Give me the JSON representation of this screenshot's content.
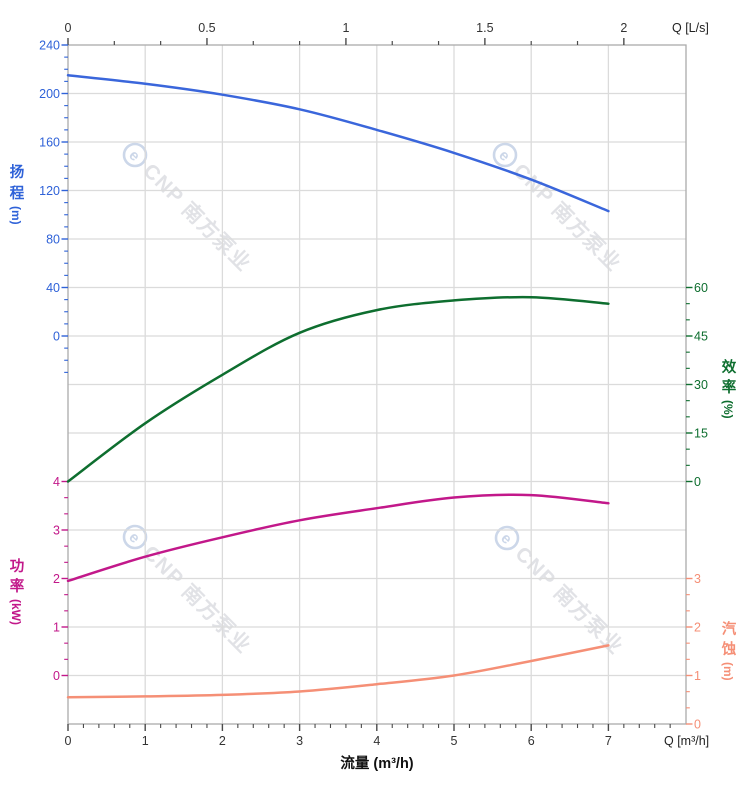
{
  "chart_data": {
    "type": "line",
    "title": "",
    "x_axis": {
      "bottom_title": "流量 (m³/h)",
      "bottom_corner_label": "Q [m³/h]",
      "top_corner_label": "Q [L/s]",
      "bottom_ticks": [
        "0",
        "1",
        "2",
        "3",
        "4",
        "5",
        "6",
        "7"
      ],
      "top_ticks": [
        "0",
        "0.5",
        "1",
        "1.5",
        "2"
      ],
      "bottom_range_m3h": [
        0,
        8
      ],
      "m3h_per_ls": 3.6,
      "grid": true
    },
    "series": [
      {
        "id": "head",
        "name": "扬程",
        "unit": "(m)",
        "color": "#3A66DB",
        "label_color": "#2F62D8",
        "axis_side": "left",
        "axis_ticks": [
          "240",
          "200",
          "160",
          "120",
          "80",
          "40",
          "0"
        ],
        "axis_range": [
          0,
          240
        ],
        "x_m3h": [
          0,
          1,
          2,
          3,
          4,
          5,
          6,
          7
        ],
        "values": [
          215,
          208,
          199,
          187,
          170,
          151,
          129,
          103
        ]
      },
      {
        "id": "efficiency",
        "name": "效率",
        "unit": "(%)",
        "color": "#0E6E2F",
        "label_color": "#0E6E2F",
        "axis_side": "right",
        "axis_ticks": [
          "60",
          "45",
          "30",
          "15",
          "0"
        ],
        "axis_range": [
          0,
          60
        ],
        "x_m3h": [
          0,
          1,
          2,
          3,
          4,
          5,
          6,
          7
        ],
        "values": [
          0,
          18,
          33,
          46,
          53,
          56,
          57,
          55
        ]
      },
      {
        "id": "power",
        "name": "功率",
        "unit": "(kW)",
        "color": "#C2188A",
        "label_color": "#C2188A",
        "axis_side": "left",
        "axis_ticks": [
          "4",
          "3",
          "2",
          "1",
          "0"
        ],
        "axis_range": [
          0,
          4
        ],
        "x_m3h": [
          0,
          1,
          2,
          3,
          4,
          5,
          6,
          7
        ],
        "values": [
          1.95,
          2.45,
          2.85,
          3.2,
          3.45,
          3.67,
          3.72,
          3.55
        ]
      },
      {
        "id": "npsh",
        "name": "汽蚀",
        "unit": "(m)",
        "color": "#F58F76",
        "label_color": "#F58F76",
        "axis_side": "right",
        "axis_ticks": [
          "3",
          "2",
          "1",
          "0"
        ],
        "axis_range": [
          0,
          3
        ],
        "x_m3h": [
          0,
          1,
          2,
          3,
          4,
          5,
          6,
          7
        ],
        "values": [
          0.55,
          0.57,
          0.6,
          0.67,
          0.82,
          1.0,
          1.3,
          1.62
        ]
      }
    ],
    "legend_position": "none",
    "watermark": {
      "logo_glyph": "e",
      "text": "CNP 南方泵业"
    }
  },
  "colors": {
    "background": "#FFFFFF",
    "grid": "#DBDBDB",
    "plot_border": "#ABABAB",
    "tick_dark": "#4A4A4A",
    "axis_number_dark": "#333333",
    "corner_label": "#222222",
    "bottom_title": "#111111",
    "watermark_logo": "#CCD7E9",
    "watermark_text": "#E1E2E6"
  }
}
